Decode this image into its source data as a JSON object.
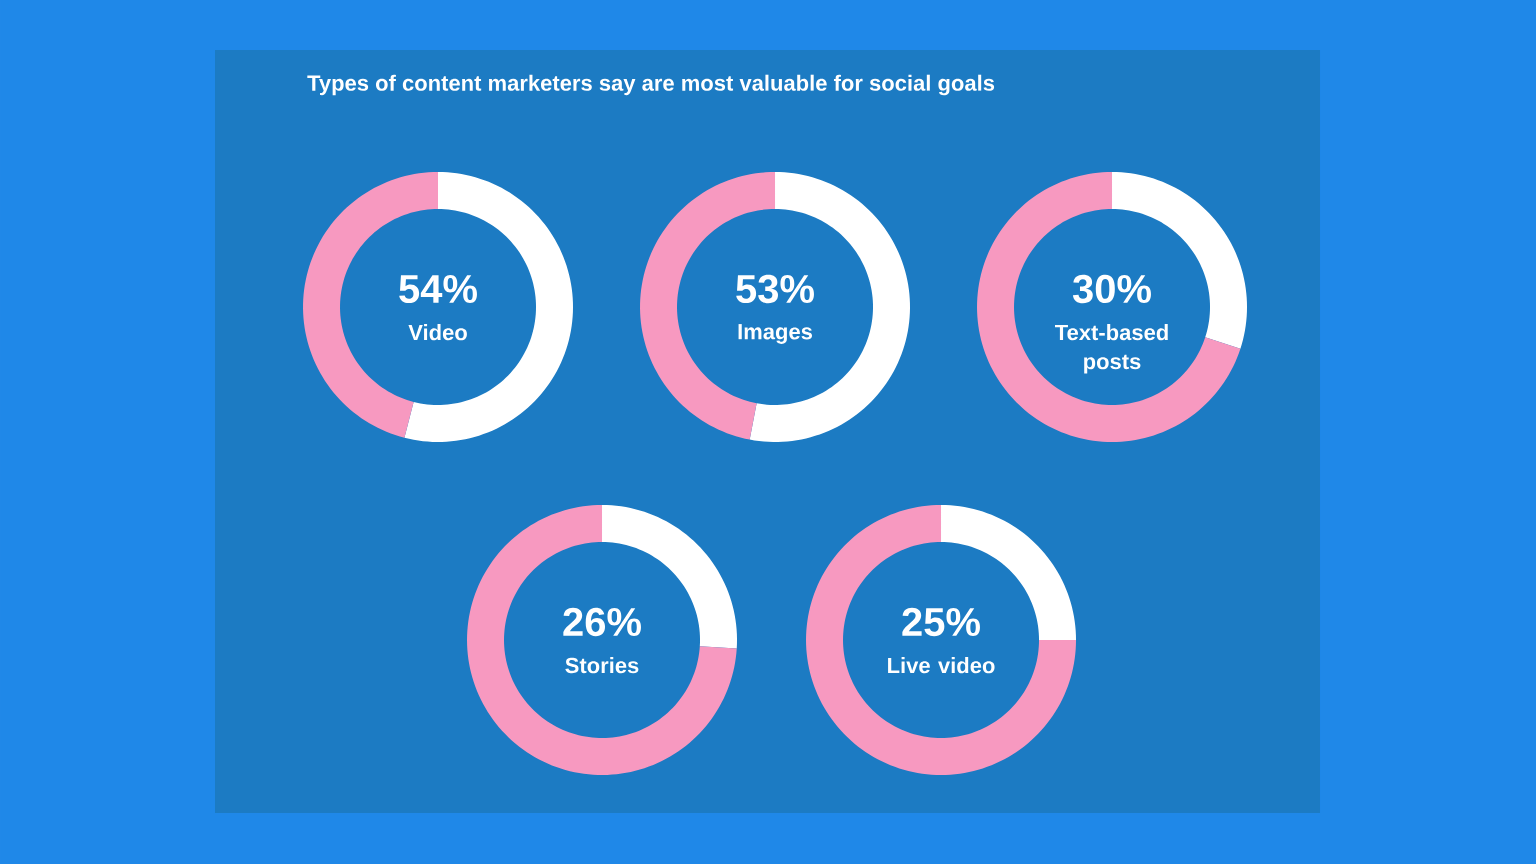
{
  "chart_data": [
    {
      "type": "other",
      "title": "Types of content marketers say are most valuable for social goals"
    },
    {
      "type": "donut",
      "title": "Video",
      "categories": [
        null,
        null
      ],
      "values": [
        54,
        46
      ],
      "colors": [
        "#ffffff",
        "#f799c0"
      ],
      "value_labels": [
        "54%",
        null
      ]
    },
    {
      "type": "donut",
      "title": "Images",
      "categories": [
        null,
        null
      ],
      "values": [
        53,
        47
      ],
      "colors": [
        "#ffffff",
        "#f799c0"
      ],
      "value_labels": [
        "53%",
        null
      ]
    },
    {
      "type": "donut",
      "title": "Text-based posts",
      "categories": [
        null,
        null
      ],
      "values": [
        30,
        70
      ],
      "colors": [
        "#ffffff",
        "#f799c0"
      ],
      "value_labels": [
        "30%",
        null
      ]
    },
    {
      "type": "donut",
      "title": "Stories",
      "categories": [
        null,
        null
      ],
      "values": [
        26,
        74
      ],
      "colors": [
        "#ffffff",
        "#f799c0"
      ],
      "value_labels": [
        "26%",
        null
      ]
    },
    {
      "type": "donut",
      "title": "Live video",
      "categories": [
        null,
        null
      ],
      "values": [
        25,
        75
      ],
      "colors": [
        "#ffffff",
        "#f799c0"
      ],
      "value_labels": [
        "25%",
        null
      ]
    }
  ]
}
